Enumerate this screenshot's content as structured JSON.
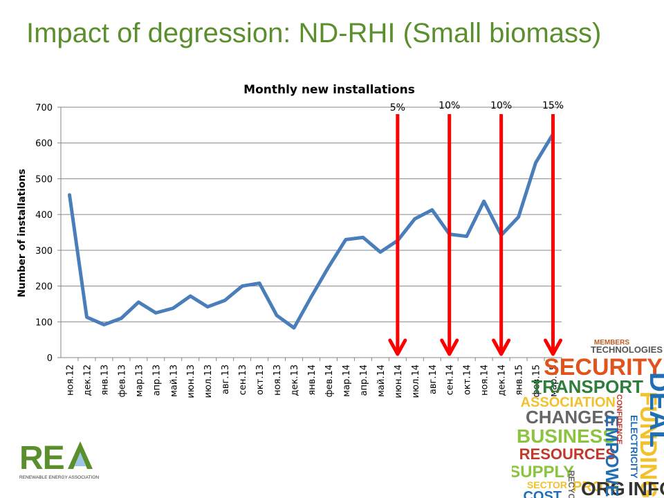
{
  "slide": {
    "title": "Impact of degression: ND-RHI (Small biomass)"
  },
  "chart_data": {
    "type": "line",
    "title": "Monthly new installations",
    "xlabel": "",
    "ylabel": "Number of installations",
    "ylim": [
      0,
      700
    ],
    "yticks": [
      0,
      100,
      200,
      300,
      400,
      500,
      600,
      700
    ],
    "grid": true,
    "legend": "none",
    "categories": [
      "ноя.12",
      "дек.12",
      "янв.13",
      "фев.13",
      "мар.13",
      "апр.13",
      "май.13",
      "июн.13",
      "июл.13",
      "авг.13",
      "сен.13",
      "окт.13",
      "ноя.13",
      "дек.13",
      "янв.14",
      "фев.14",
      "мар.14",
      "апр.14",
      "май.14",
      "июн.14",
      "июл.14",
      "авг.14",
      "сен.14",
      "окт.14",
      "ноя.14",
      "дек.14",
      "янв.15",
      "фев.15",
      "мар.15"
    ],
    "series": [
      {
        "values": [
          455,
          113,
          92,
          110,
          155,
          125,
          138,
          172,
          142,
          160,
          200,
          208,
          118,
          83,
          170,
          253,
          330,
          336,
          295,
          327,
          388,
          413,
          345,
          339,
          437,
          342,
          393,
          545,
          625
        ],
        "color": "#4a7ebb"
      }
    ],
    "annotations": [
      {
        "label": "5%",
        "category": "июн.14"
      },
      {
        "label": "10%",
        "category": "сен.14"
      },
      {
        "label": "10%",
        "category": "дек.14"
      },
      {
        "label": "15%",
        "category": "мар.15"
      }
    ],
    "arrow_color": "#ff0000"
  },
  "logo": {
    "letters": "REA",
    "caption": "RENEWABLE ENERGY ASSOCIATION",
    "colors": {
      "letters": "#5b8f2d",
      "a_sky": "#9cc5e8"
    }
  },
  "wordcloud": {
    "words": [
      {
        "text": "MEMBERS",
        "color": "#c05a24"
      },
      {
        "text": "TECHNOLOGIES",
        "color": "#555555"
      },
      {
        "text": "SECURITY",
        "color": "#e0531c"
      },
      {
        "text": "TRANSPORT",
        "color": "#2e7d3a"
      },
      {
        "text": "ASSOCIATION",
        "color": "#f2c12e"
      },
      {
        "text": "CHANGES",
        "color": "#666666"
      },
      {
        "text": "BUSINESS",
        "color": "#8dc43f"
      },
      {
        "text": "RESOURCES",
        "color": "#c0392b"
      },
      {
        "text": "SUPPLY",
        "color": "#8dc43f"
      },
      {
        "text": "SECTOR",
        "color": "#f2c12e"
      },
      {
        "text": "COST",
        "color": "#1f6fb5"
      },
      {
        "text": "PROJE",
        "color": "#f2c12e"
      },
      {
        "text": "ORG",
        "color": "#333333"
      },
      {
        "text": "EMPOWER",
        "color": "#1f6fb5"
      },
      {
        "text": "CONFIDENCE",
        "color": "#c0392b"
      },
      {
        "text": "ELECTRICITY",
        "color": "#1f6fb5"
      },
      {
        "text": "FUNDING",
        "color": "#f2c12e"
      },
      {
        "text": "DEAL",
        "color": "#1f6fb5"
      },
      {
        "text": "INFO",
        "color": "#333333"
      },
      {
        "text": "RECYC",
        "color": "#666666"
      }
    ]
  }
}
